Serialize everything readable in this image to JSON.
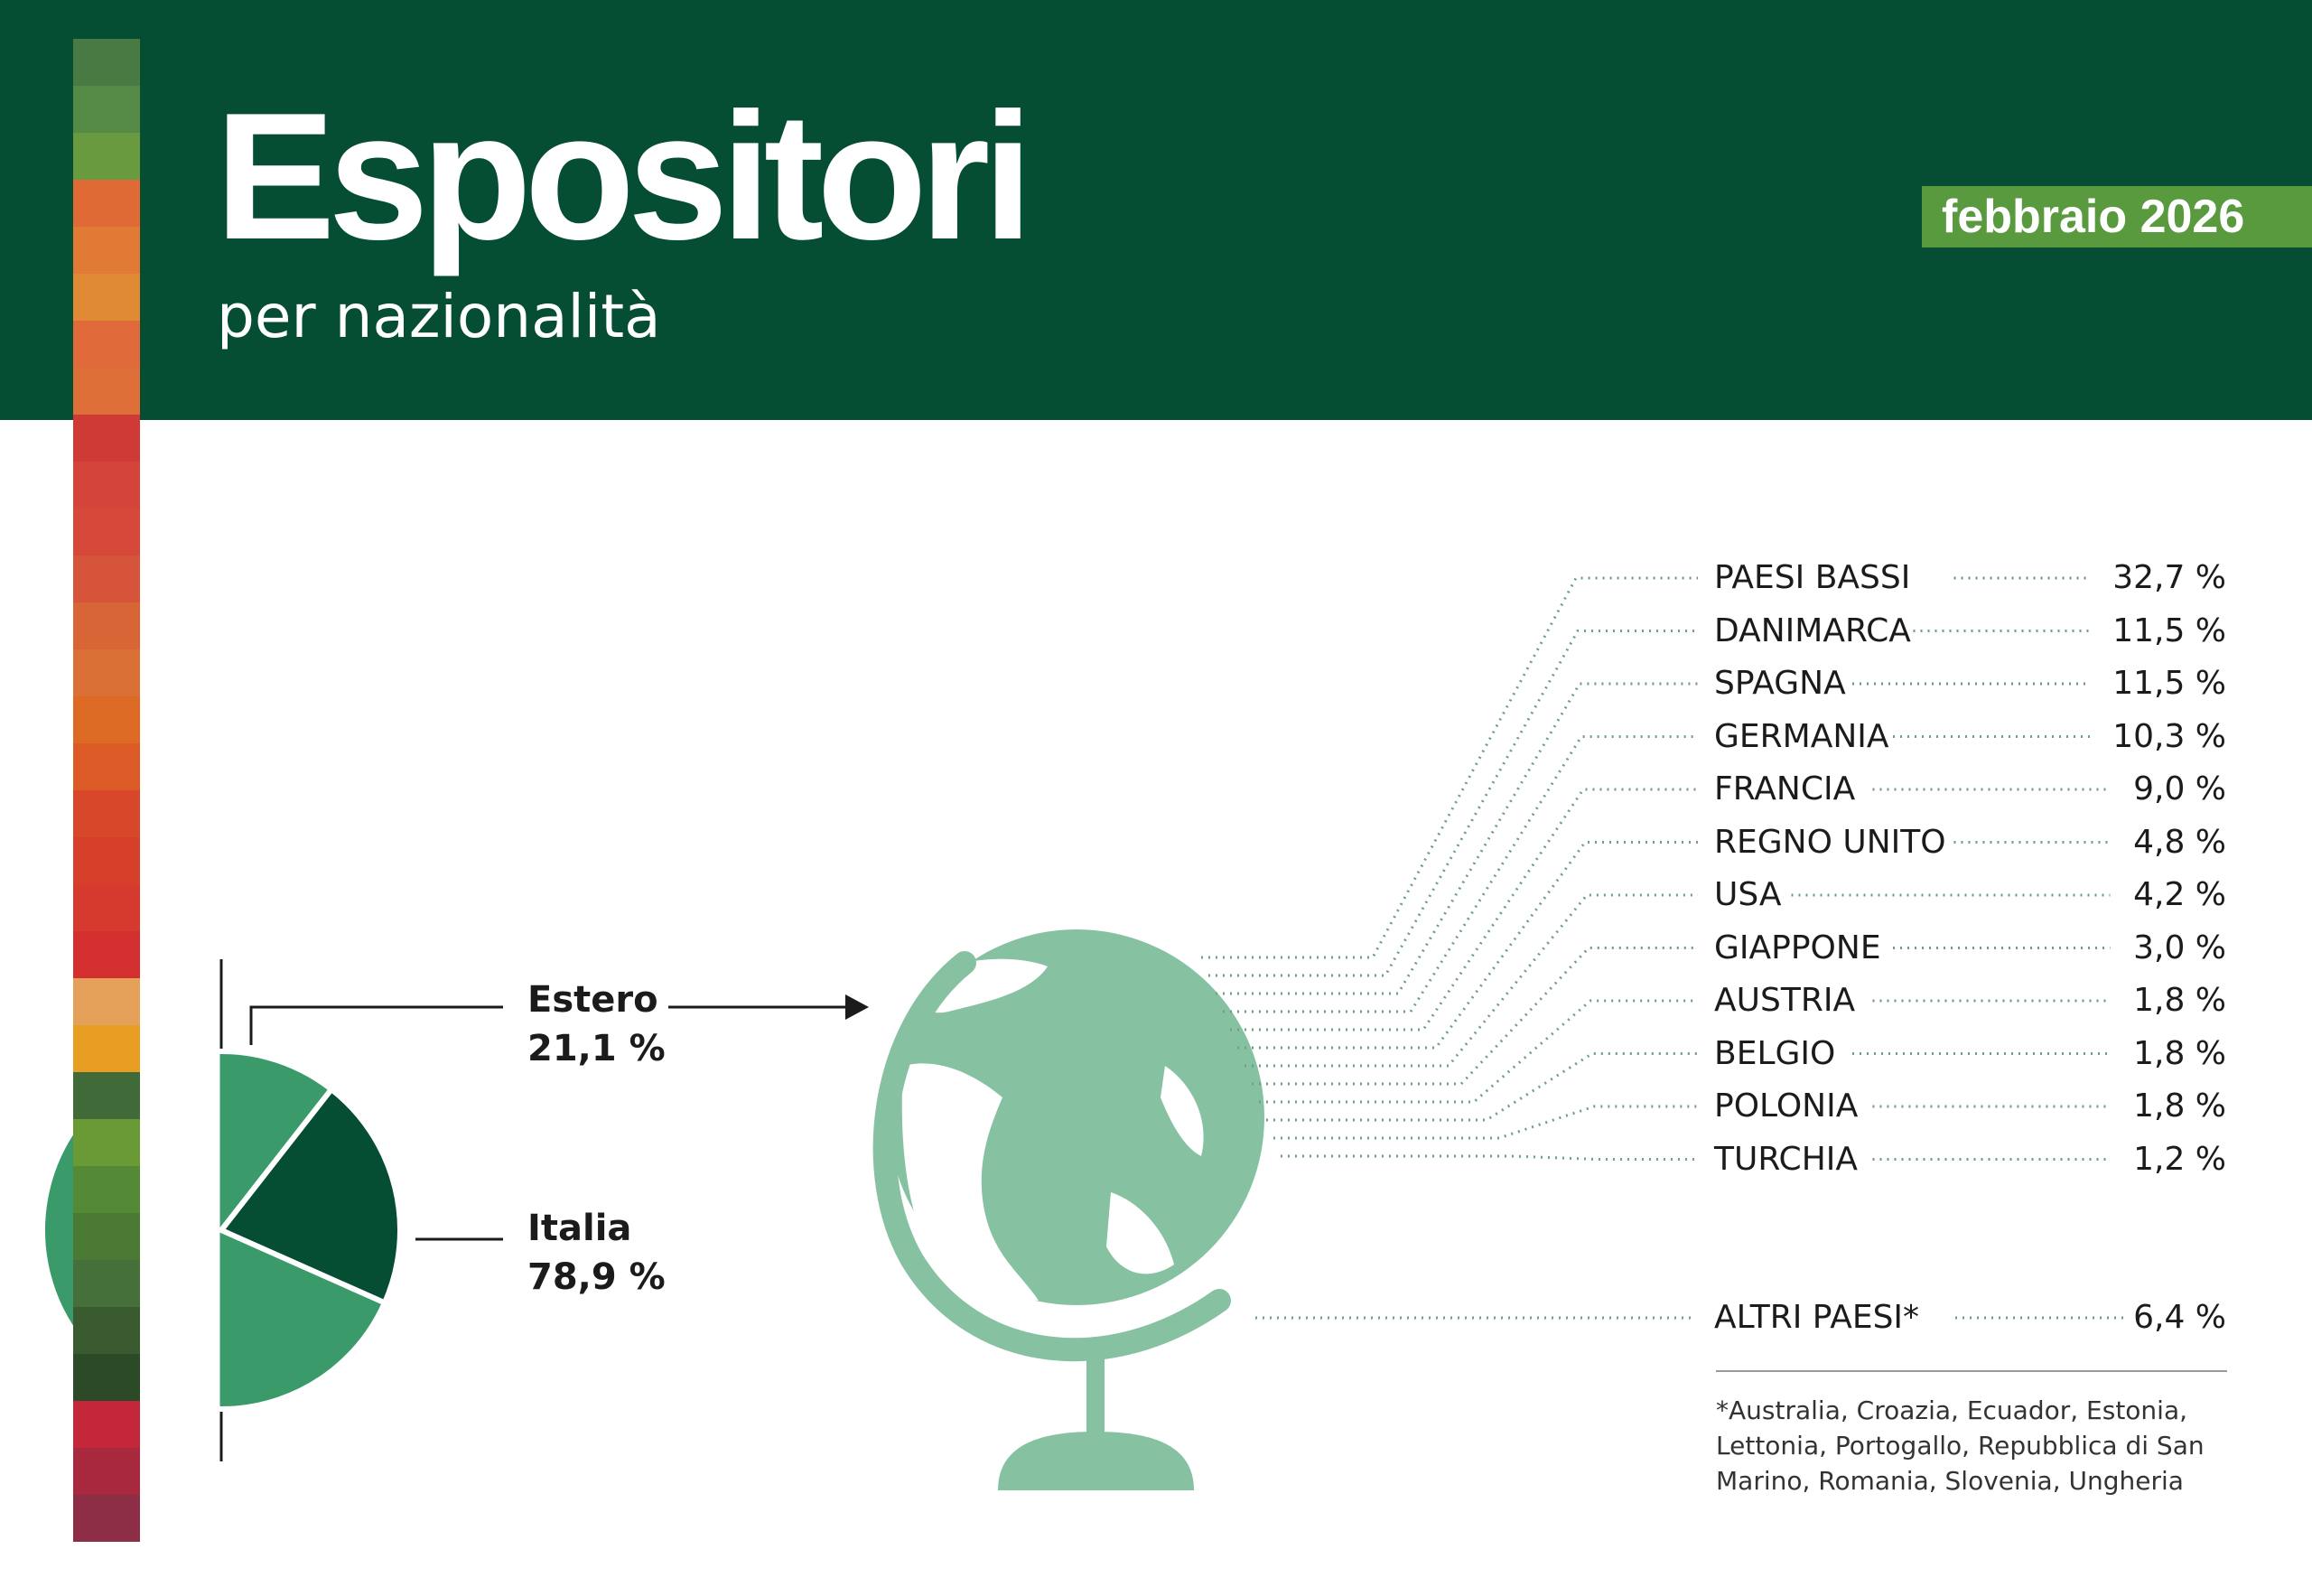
{
  "header": {
    "title": "Espositori",
    "subtitle": "per nazionalità",
    "date_badge": "febbraio 2026"
  },
  "colors": {
    "header_bg": "#054d33",
    "badge_bg": "#5a9a3f",
    "pie_estero": "#054d33",
    "pie_italia": "#3b9a69",
    "globe": "#86c2a2",
    "dots": "#6f9f85"
  },
  "decorative_stripe": [
    "#4a7a43",
    "#548a45",
    "#6a9a3f",
    "#df6a35",
    "#e07a35",
    "#e08a35",
    "#e06a3a",
    "#df6f38",
    "#cf3a35",
    "#d4443a",
    "#d6483a",
    "#d6553a",
    "#d86535",
    "#da7035",
    "#dc6a25",
    "#db5a25",
    "#d8472a",
    "#d6402a",
    "#d63a2f",
    "#d32f2f",
    "#e5a05a",
    "#e89e22",
    "#406a38",
    "#6a9a35",
    "#548a35",
    "#4a7a33",
    "#46703a",
    "#3a5a30",
    "#2c4a28",
    "#c4263a",
    "#a8283e",
    "#8e2e46"
  ],
  "chart_data": [
    {
      "type": "pie",
      "slices": [
        {
          "label": "Estero",
          "value": 21.1,
          "value_label": "21,1 %"
        },
        {
          "label": "Italia",
          "value": 78.9,
          "value_label": "78,9 %"
        }
      ]
    },
    {
      "type": "table",
      "countries": [
        {
          "name": "PAESI BASSI",
          "value": 32.7,
          "label": "32,7 %"
        },
        {
          "name": "DANIMARCA",
          "value": 11.5,
          "label": "11,5 %"
        },
        {
          "name": "SPAGNA",
          "value": 11.5,
          "label": "11,5 %"
        },
        {
          "name": "GERMANIA",
          "value": 10.3,
          "label": "10,3 %"
        },
        {
          "name": "FRANCIA",
          "value": 9.0,
          "label": "9,0 %"
        },
        {
          "name": "REGNO UNITO",
          "value": 4.8,
          "label": "4,8 %"
        },
        {
          "name": "USA",
          "value": 4.2,
          "label": "4,2 %"
        },
        {
          "name": "GIAPPONE",
          "value": 3.0,
          "label": "3,0 %"
        },
        {
          "name": "AUSTRIA",
          "value": 1.8,
          "label": "1,8 %"
        },
        {
          "name": "BELGIO",
          "value": 1.8,
          "label": "1,8 %"
        },
        {
          "name": "POLONIA",
          "value": 1.8,
          "label": "1,8 %"
        },
        {
          "name": "TURCHIA",
          "value": 1.2,
          "label": "1,2 %"
        }
      ],
      "other": {
        "name": "ALTRI PAESI*",
        "value": 6.4,
        "label": "6,4 %"
      }
    }
  ],
  "footnote": "*Australia, Croazia, Ecuador, Estonia, Lettonia, Portogallo, Repubblica di San Marino, Romania, Slovenia, Ungheria"
}
